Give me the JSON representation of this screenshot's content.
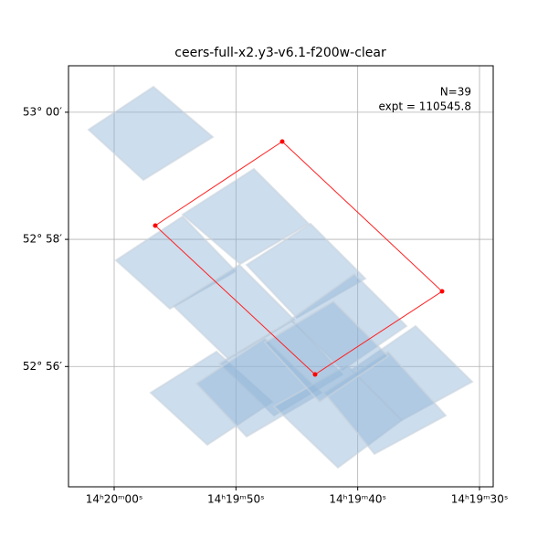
{
  "chart_data": {
    "type": "footprint",
    "title": "ceers-full-x2.y3-v6.1-f200w-clear",
    "annotations": [
      "N=39",
      "expt = 110545.8"
    ],
    "xlim": [
      215.015625,
      214.8703125
    ],
    "xticks": [
      {
        "value": 215.0,
        "label": "14ʰ20ᵐ00ˢ"
      },
      {
        "value": 214.9583333,
        "label": "14ʰ19ᵐ50ˢ"
      },
      {
        "value": 214.9166667,
        "label": "14ʰ19ᵐ40ˢ"
      },
      {
        "value": 214.875,
        "label": "14ʰ19ᵐ30ˢ"
      }
    ],
    "ylim": [
      52.901792,
      53.012186
    ],
    "yticks": [
      {
        "value": 53.0,
        "label": "53° 00′"
      },
      {
        "value": 52.9666667,
        "label": "52° 58′"
      },
      {
        "value": 52.9333333,
        "label": "52° 56′"
      }
    ],
    "grid": true
  }
}
